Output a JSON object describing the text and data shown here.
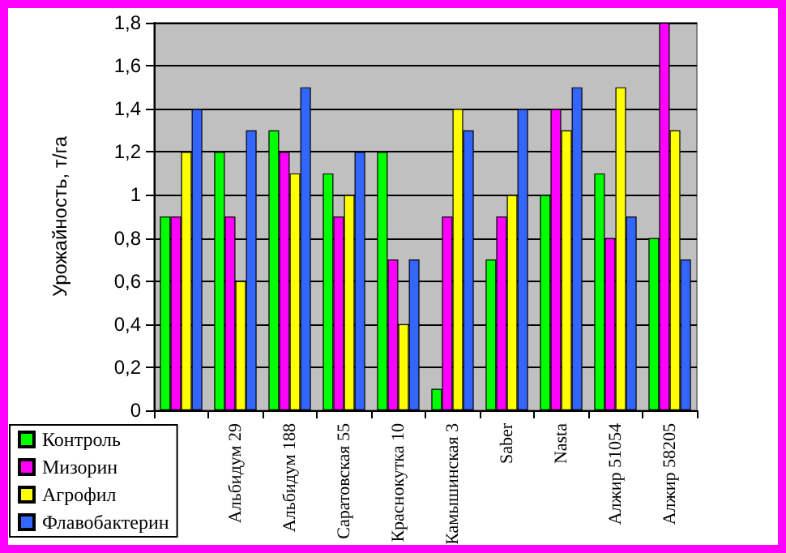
{
  "chart_data": {
    "type": "bar",
    "ylabel": "Урожайность, т/га",
    "categories": [
      null,
      "Альбидум 29",
      "Альбидум 188",
      "Саратовская 55",
      "Краснокутка 10",
      "Камышинская 3",
      "Saber",
      "Nasta",
      "Алжир 51054",
      "Алжир 58205"
    ],
    "series": [
      {
        "name": "Контроль",
        "color": "#00ff00",
        "values": [
          0.9,
          1.2,
          1.3,
          1.1,
          1.2,
          0.1,
          0.7,
          1.0,
          1.1,
          0.8
        ]
      },
      {
        "name": "Мизорин",
        "color": "#ff00ff",
        "values": [
          0.9,
          0.9,
          1.2,
          0.9,
          0.7,
          0.9,
          0.9,
          1.4,
          0.8,
          1.8
        ]
      },
      {
        "name": "Агрофил",
        "color": "#ffff00",
        "values": [
          1.2,
          0.6,
          1.1,
          1.0,
          0.4,
          1.4,
          1.0,
          1.3,
          1.5,
          1.3
        ]
      },
      {
        "name": "Флавобактерин",
        "color": "#3366ff",
        "values": [
          1.4,
          1.3,
          1.5,
          1.2,
          0.7,
          1.3,
          1.4,
          1.5,
          0.9,
          0.7
        ]
      }
    ],
    "ylim": [
      0,
      1.8
    ],
    "yticks": [
      0,
      {
        "value": 0.2,
        "label": "0,2"
      },
      {
        "value": 0.4,
        "label": "0,4"
      },
      {
        "value": 0.6,
        "label": "0,6"
      },
      {
        "value": 0.8,
        "label": "0,8"
      },
      1,
      {
        "value": 1.2,
        "label": "1,2"
      },
      {
        "value": 1.4,
        "label": "1,4"
      },
      {
        "value": 1.6,
        "label": "1,6"
      },
      {
        "value": 1.8,
        "label": "1,8"
      }
    ],
    "grid": "y",
    "legend": "bottom left"
  }
}
